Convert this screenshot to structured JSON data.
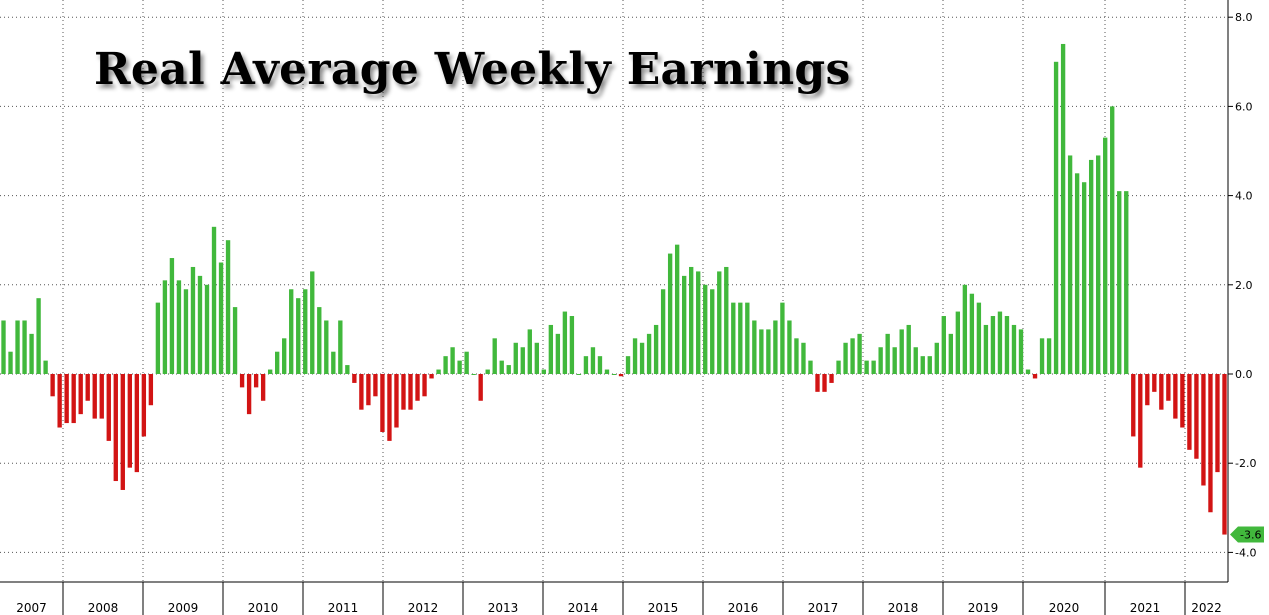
{
  "chart_data": {
    "type": "bar",
    "title": "Real Average Weekly Earnings",
    "xlabel": "",
    "ylabel": "",
    "ylim": [
      -4.4,
      8.3
    ],
    "y_ticks": [
      "8.0",
      "6.0",
      "4.0",
      "2.0",
      "0.0",
      "-2.0",
      "-4.0"
    ],
    "y_tick_values": [
      8,
      6,
      4,
      2,
      0,
      -2,
      -4
    ],
    "y_axis_side": "right",
    "grid": "dotted",
    "last_value_label": "-3.6",
    "last_value": -3.6,
    "years": [
      "2007",
      "2008",
      "2009",
      "2010",
      "2011",
      "2012",
      "2013",
      "2014",
      "2015",
      "2016",
      "2017",
      "2018",
      "2019",
      "2020",
      "2021",
      "2022"
    ],
    "x_start": "2007-03",
    "x_end": "2022-03",
    "values": [
      1.2,
      0.5,
      1.2,
      1.2,
      0.9,
      1.7,
      0.3,
      -0.5,
      -1.2,
      -1.1,
      -1.1,
      -0.9,
      -0.6,
      -1.0,
      -1.0,
      -1.5,
      -2.4,
      -2.6,
      -2.1,
      -2.2,
      -1.4,
      -0.7,
      1.6,
      2.1,
      2.6,
      2.1,
      1.9,
      2.4,
      2.2,
      2.0,
      3.3,
      2.5,
      3.0,
      1.5,
      -0.3,
      -0.9,
      -0.3,
      -0.6,
      0.1,
      0.5,
      0.8,
      1.9,
      1.7,
      1.9,
      2.3,
      1.5,
      1.2,
      0.5,
      1.2,
      0.2,
      -0.2,
      -0.8,
      -0.7,
      -0.5,
      -1.3,
      -1.5,
      -1.2,
      -0.8,
      -0.8,
      -0.6,
      -0.5,
      -0.1,
      0.1,
      0.4,
      0.6,
      0.3,
      0.5,
      0.0,
      -0.6,
      0.1,
      0.8,
      0.3,
      0.2,
      0.7,
      0.6,
      1.0,
      0.7,
      0.1,
      1.1,
      0.9,
      1.4,
      1.3,
      0.0,
      0.4,
      0.6,
      0.4,
      0.1,
      0.0,
      -0.05,
      0.4,
      0.8,
      0.7,
      0.9,
      1.1,
      1.9,
      2.7,
      2.9,
      2.2,
      2.4,
      2.3,
      2.0,
      1.9,
      2.3,
      2.4,
      1.6,
      1.6,
      1.6,
      1.2,
      1.0,
      1.0,
      1.2,
      1.6,
      1.2,
      0.8,
      0.7,
      0.3,
      -0.4,
      -0.4,
      -0.2,
      0.3,
      0.7,
      0.8,
      0.9,
      0.3,
      0.3,
      0.6,
      0.9,
      0.6,
      1.0,
      1.1,
      0.6,
      0.4,
      0.4,
      0.7,
      1.3,
      0.9,
      1.4,
      2.0,
      1.8,
      1.6,
      1.1,
      1.3,
      1.4,
      1.3,
      1.1,
      1.0,
      0.1,
      -0.1,
      0.8,
      0.8,
      7.0,
      7.4,
      4.9,
      4.5,
      4.3,
      4.8,
      4.9,
      5.3,
      6.0,
      4.1,
      4.1,
      -1.4,
      -2.1,
      -0.7,
      -0.4,
      -0.8,
      -0.6,
      -1.0,
      -1.2,
      -1.7,
      -1.9,
      -2.5,
      -3.1,
      -2.2,
      -3.6
    ],
    "colors": {
      "positive": "#41b83c",
      "negative": "#d21414"
    }
  }
}
